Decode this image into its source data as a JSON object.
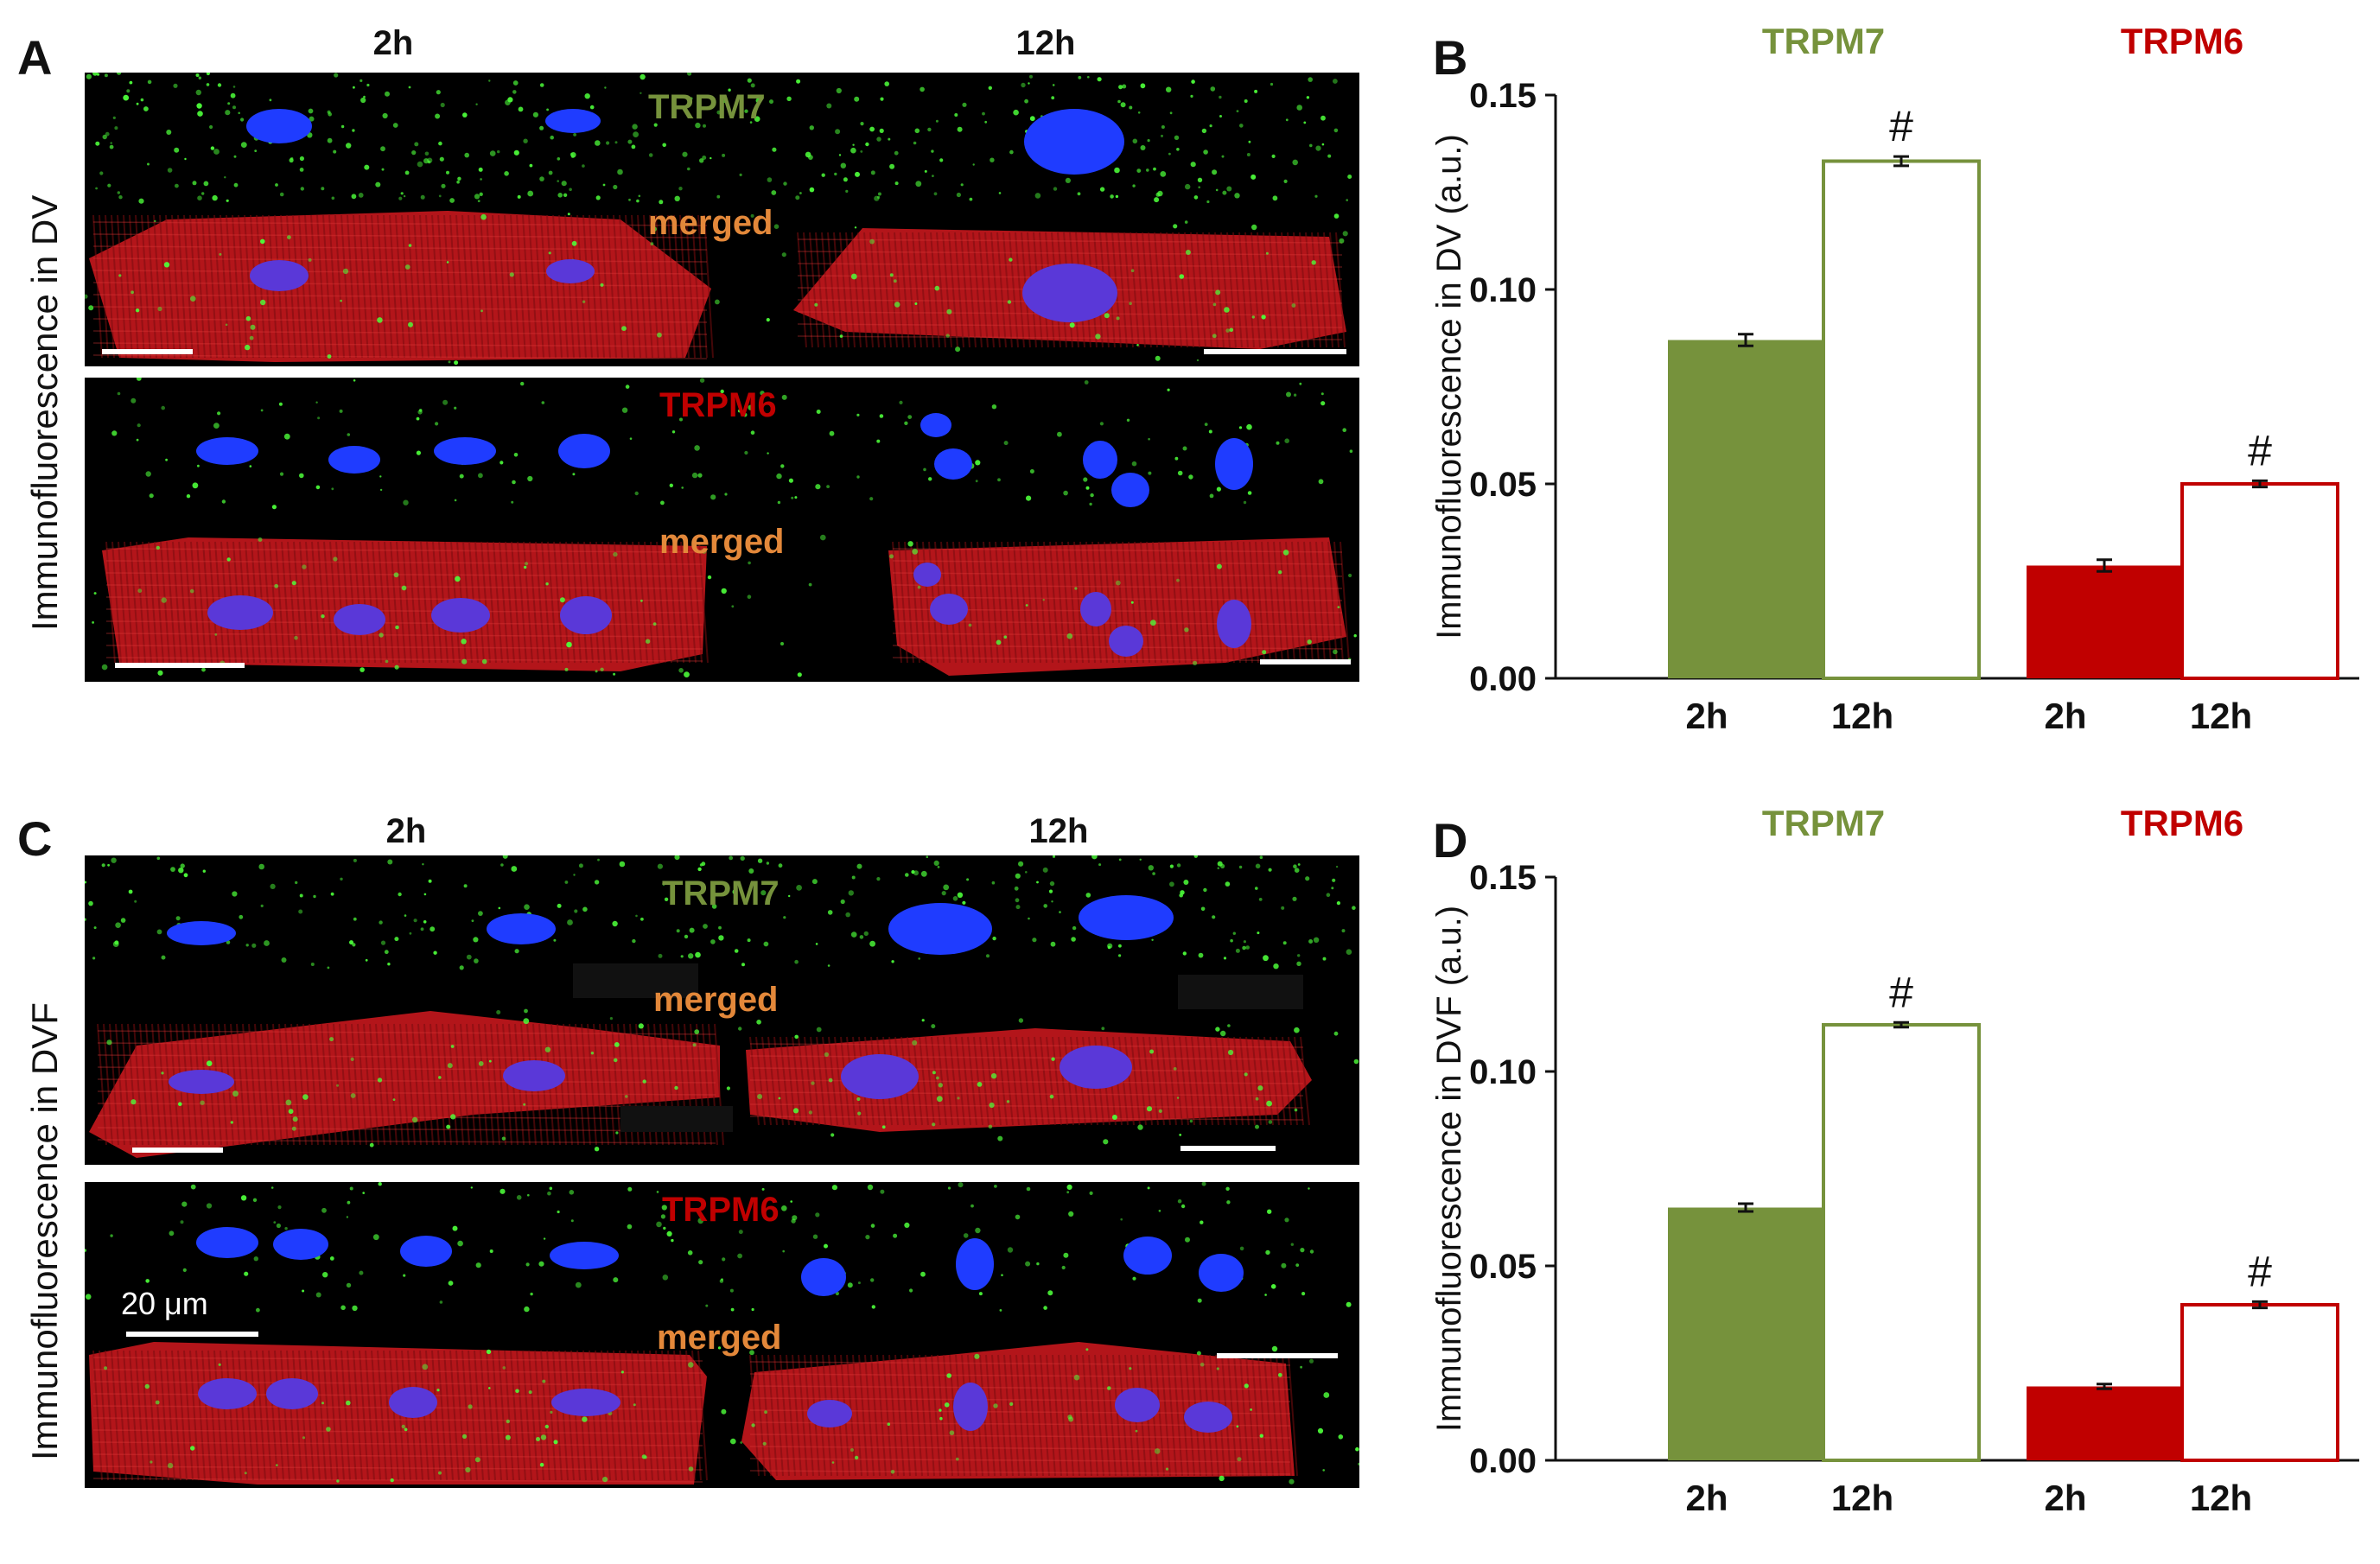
{
  "panels": {
    "A": {
      "letter": "A",
      "ylabel": "Immunofluorescence  in DV",
      "col_2h": "2h",
      "col_12h": "12h",
      "top_label": "TRPM7",
      "merged_top": "merged",
      "bottom_label": "TRPM6",
      "merged_bottom": "merged"
    },
    "B": {
      "letter": "B"
    },
    "C": {
      "letter": "C",
      "ylabel": "Immunofluorescence  in DVF",
      "col_2h": "2h",
      "col_12h": "12h",
      "top_label": "TRPM7",
      "merged_top": "merged",
      "bottom_label": "TRPM6",
      "merged_bottom": "merged",
      "scale_label": "20 μm"
    },
    "D": {
      "letter": "D"
    }
  },
  "colors": {
    "trpm7": "#76923c",
    "trpm6": "#c00000",
    "merged": "#e3883a",
    "nucleus": "#1f3cff",
    "actin": "#c8161b",
    "dot": "#4dff3a"
  },
  "chart_data": [
    {
      "type": "bar",
      "panel": "B",
      "ylabel": "Immunofluorescence  in DV (a.u.)",
      "ylim": [
        0,
        0.15
      ],
      "yticks": [
        "0.00",
        "0.05",
        "0.10",
        "0.15"
      ],
      "groups": [
        {
          "name": "TRPM7",
          "color": "#76923c",
          "bars": [
            {
              "label": "2h",
              "value": 0.087,
              "error": 0.0015,
              "filled": true,
              "marker": ""
            },
            {
              "label": "12h",
              "value": 0.133,
              "error": 0.0012,
              "filled": false,
              "marker": "#"
            }
          ]
        },
        {
          "name": "TRPM6",
          "color": "#c00000",
          "bars": [
            {
              "label": "2h",
              "value": 0.029,
              "error": 0.0015,
              "filled": true,
              "marker": ""
            },
            {
              "label": "12h",
              "value": 0.05,
              "error": 0.0008,
              "filled": false,
              "marker": "#"
            }
          ]
        }
      ]
    },
    {
      "type": "bar",
      "panel": "D",
      "ylabel": "Immunofluorescence  in DVF (a.u.)",
      "ylim": [
        0,
        0.15
      ],
      "yticks": [
        "0.00",
        "0.05",
        "0.10",
        "0.15"
      ],
      "groups": [
        {
          "name": "TRPM7",
          "color": "#76923c",
          "bars": [
            {
              "label": "2h",
              "value": 0.065,
              "error": 0.001,
              "filled": true,
              "marker": ""
            },
            {
              "label": "12h",
              "value": 0.112,
              "error": 0.0006,
              "filled": false,
              "marker": "#"
            }
          ]
        },
        {
          "name": "TRPM6",
          "color": "#c00000",
          "bars": [
            {
              "label": "2h",
              "value": 0.019,
              "error": 0.0006,
              "filled": true,
              "marker": ""
            },
            {
              "label": "12h",
              "value": 0.04,
              "error": 0.0008,
              "filled": false,
              "marker": "#"
            }
          ]
        }
      ]
    }
  ]
}
